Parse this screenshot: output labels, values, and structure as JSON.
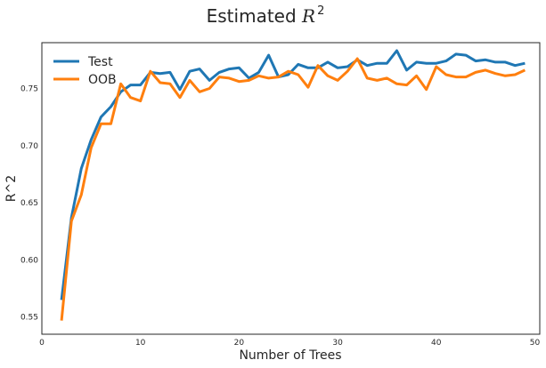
{
  "chart_data": {
    "type": "line",
    "title": "Estimated ",
    "title_math": {
      "base": "R",
      "superscript": "2"
    },
    "xlabel": "Number of Trees",
    "ylabel": "R^2",
    "xlim": [
      0,
      50.5
    ],
    "ylim": [
      0.535,
      0.79
    ],
    "xticks": [
      0,
      10,
      20,
      30,
      40,
      50
    ],
    "yticks": [
      0.55,
      0.6,
      0.65,
      0.7,
      0.75
    ],
    "ytick_labels": [
      "0.55",
      "0.60",
      "0.65",
      "0.70",
      "0.75"
    ],
    "grid": false,
    "legend_position": "top-left",
    "x": [
      2,
      3,
      4,
      5,
      6,
      7,
      8,
      9,
      10,
      11,
      12,
      13,
      14,
      15,
      16,
      17,
      18,
      19,
      20,
      21,
      22,
      23,
      24,
      25,
      26,
      27,
      28,
      29,
      30,
      31,
      32,
      33,
      34,
      35,
      36,
      37,
      38,
      39,
      40,
      41,
      42,
      43,
      44,
      45,
      46,
      47,
      48,
      49
    ],
    "series": [
      {
        "name": "Test",
        "color": "#1f77b4",
        "values": [
          0.565,
          0.637,
          0.68,
          0.705,
          0.725,
          0.734,
          0.747,
          0.753,
          0.753,
          0.764,
          0.763,
          0.764,
          0.749,
          0.765,
          0.767,
          0.757,
          0.764,
          0.767,
          0.768,
          0.759,
          0.764,
          0.779,
          0.76,
          0.762,
          0.771,
          0.768,
          0.768,
          0.773,
          0.768,
          0.769,
          0.775,
          0.77,
          0.772,
          0.772,
          0.783,
          0.766,
          0.773,
          0.772,
          0.772,
          0.774,
          0.78,
          0.779,
          0.774,
          0.775,
          0.773,
          0.773,
          0.77,
          0.772
        ]
      },
      {
        "name": "OOB",
        "color": "#ff7f0e",
        "values": [
          0.547,
          0.634,
          0.657,
          0.698,
          0.719,
          0.719,
          0.754,
          0.742,
          0.739,
          0.765,
          0.755,
          0.754,
          0.742,
          0.757,
          0.747,
          0.75,
          0.76,
          0.759,
          0.756,
          0.757,
          0.761,
          0.759,
          0.76,
          0.765,
          0.762,
          0.751,
          0.77,
          0.761,
          0.757,
          0.765,
          0.776,
          0.759,
          0.757,
          0.759,
          0.754,
          0.753,
          0.761,
          0.749,
          0.769,
          0.762,
          0.76,
          0.76,
          0.764,
          0.766,
          0.763,
          0.761,
          0.762,
          0.766
        ]
      }
    ]
  }
}
